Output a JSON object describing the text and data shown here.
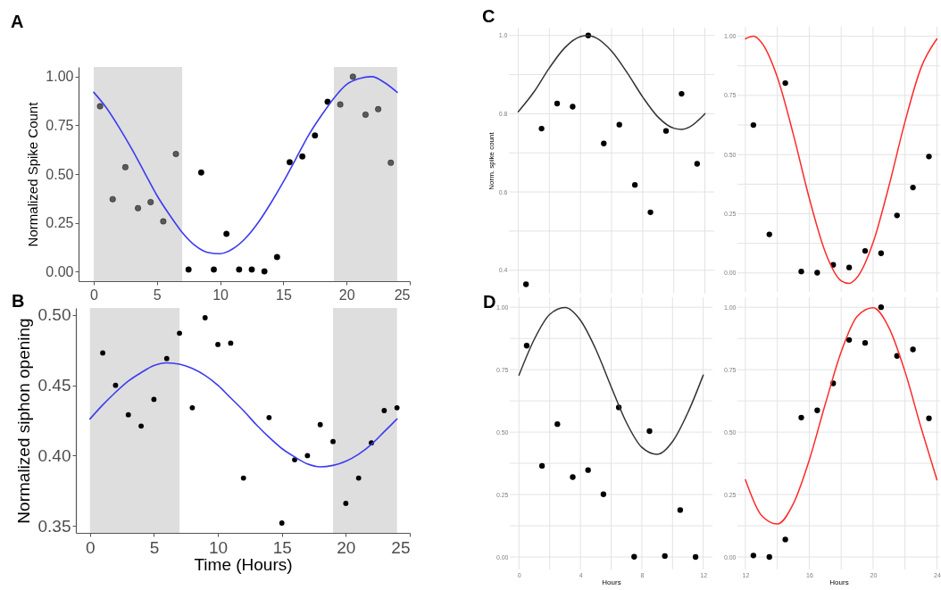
{
  "chart_data": [
    {
      "type": "scatter",
      "title": "A",
      "ylabel": "Normalized Spike Count",
      "xlim": [
        -1.2,
        25
      ],
      "ylim": [
        -0.05,
        1.05
      ],
      "xticks": [
        0,
        5,
        10,
        15,
        20,
        25
      ],
      "yticks": [
        {
          "value": 0,
          "label": "0.00"
        },
        0.25,
        {
          "value": 0.5,
          "label": "0.50"
        },
        0.75,
        {
          "value": 1,
          "label": "1.00"
        }
      ],
      "grid": false,
      "bands": [
        {
          "axis": "x",
          "from": 0,
          "to": 7,
          "color": "#dedede"
        },
        {
          "axis": "x",
          "from": 19,
          "to": 24,
          "color": "#dedede"
        }
      ],
      "series": [
        {
          "type": "scatter",
          "marker": "circle",
          "color": "#000000",
          "x": [
            0.5,
            1.5,
            2.5,
            3.5,
            4.5,
            5.5,
            6.5,
            7.5,
            8.5,
            9.5,
            10.5,
            11.5,
            12.5,
            13.5,
            14.5,
            15.5,
            16.5,
            17.5,
            18.5,
            19.5,
            20.5,
            21.5,
            22.5,
            23.5
          ],
          "values": [
            0.848,
            0.371,
            0.535,
            0.325,
            0.356,
            0.257,
            0.603,
            0.01,
            0.508,
            0.01,
            0.193,
            0.01,
            0.01,
            0.0,
            0.074,
            0.561,
            0.59,
            0.698,
            0.871,
            0.857,
            1.0,
            0.805,
            0.833,
            0.558
          ],
          "colors": [
            "#5a5a5a",
            "#5a5a5a",
            "#5a5a5a",
            "#5a5a5a",
            "#5a5a5a",
            "#5a5a5a",
            "#5a5a5a",
            "#000000",
            "#000000",
            "#000000",
            "#000000",
            "#000000",
            "#000000",
            "#000000",
            "#000000",
            "#000000",
            "#000000",
            "#000000",
            "#000000",
            "#5a5a5a",
            "#5a5a5a",
            "#5a5a5a",
            "#5a5a5a",
            "#5a5a5a"
          ]
        },
        {
          "type": "line",
          "marker": "none",
          "line_style": "solid",
          "color": "#3b3bf0",
          "x": [
            0,
            1,
            2,
            3,
            4,
            5,
            6,
            7,
            8,
            9,
            10,
            11,
            12,
            13,
            14,
            15,
            16,
            17,
            18,
            19,
            20,
            21,
            22,
            23,
            24
          ],
          "values": [
            0.92,
            0.84,
            0.74,
            0.63,
            0.51,
            0.39,
            0.29,
            0.2,
            0.134,
            0.098,
            0.091,
            0.116,
            0.17,
            0.25,
            0.35,
            0.46,
            0.58,
            0.7,
            0.8,
            0.89,
            0.96,
            0.99,
            1.0,
            0.97,
            0.92
          ]
        }
      ]
    },
    {
      "type": "scatter",
      "title": "B",
      "xlabel": "Time (Hours)",
      "ylabel": "Normalized siphon opening",
      "xlim": [
        -1.1,
        25
      ],
      "ylim": [
        0.345,
        0.505
      ],
      "xticks": [
        0,
        5,
        10,
        15,
        20,
        25
      ],
      "yticks": [
        0.35,
        {
          "value": 0.4,
          "label": "0.40"
        },
        0.45,
        {
          "value": 0.5,
          "label": "0.50"
        }
      ],
      "grid": false,
      "bands": [
        {
          "axis": "x",
          "from": 0,
          "to": 7,
          "color": "#dedede"
        },
        {
          "axis": "x",
          "from": 19,
          "to": 24,
          "color": "#dedede"
        }
      ],
      "series": [
        {
          "type": "scatter",
          "marker": "circle",
          "color": "#000000",
          "x": [
            1,
            2,
            3,
            4,
            5,
            6,
            7,
            8,
            9,
            10,
            11,
            12,
            14,
            15,
            16,
            17,
            18,
            19,
            20,
            21,
            22,
            23,
            24
          ],
          "values": [
            0.473,
            0.45,
            0.429,
            0.421,
            0.44,
            0.469,
            0.487,
            0.434,
            0.498,
            0.479,
            0.48,
            0.384,
            0.427,
            0.352,
            0.397,
            0.4,
            0.422,
            0.41,
            0.366,
            0.384,
            0.409,
            0.432,
            0.434
          ]
        },
        {
          "type": "line",
          "marker": "none",
          "line_style": "solid",
          "color": "#3b3bf0",
          "x": [
            0,
            1,
            2,
            3,
            4,
            5,
            6,
            7,
            8,
            9,
            10,
            11,
            12,
            13,
            14,
            15,
            16,
            17,
            18,
            19,
            20,
            21,
            22,
            23,
            24
          ],
          "values": [
            0.426,
            0.436,
            0.445,
            0.453,
            0.459,
            0.464,
            0.466,
            0.465,
            0.462,
            0.457,
            0.45,
            0.441,
            0.432,
            0.422,
            0.413,
            0.405,
            0.399,
            0.394,
            0.392,
            0.393,
            0.396,
            0.401,
            0.408,
            0.417,
            0.426
          ]
        }
      ]
    },
    {
      "type": "scatter",
      "title": "C",
      "ylabel": "Norm. spike count",
      "xlim": [
        -0.6,
        12.6
      ],
      "ylim": [
        0.34,
        1.02
      ],
      "xticks": [
        0,
        {
          "value": 2,
          "label": null
        },
        4,
        {
          "value": 6,
          "label": null
        },
        8,
        {
          "value": 10,
          "label": null
        },
        12
      ],
      "yticks": [
        0.4,
        {
          "value": 0.5,
          "label": null
        },
        0.6,
        {
          "value": 0.7,
          "label": null
        },
        0.8,
        {
          "value": 0.9,
          "label": null
        },
        {
          "value": 1,
          "label": "1.0"
        }
      ],
      "tick_labels": "y",
      "grid": true,
      "series": [
        {
          "type": "scatter",
          "marker": "circle",
          "color": "#000000",
          "x": [
            0.5,
            1.5,
            2.5,
            3.5,
            4.5,
            5.5,
            6.5,
            7.5,
            8.5,
            9.5,
            10.5,
            11.5
          ],
          "values": [
            0.364,
            0.762,
            0.826,
            0.818,
            1.0,
            0.724,
            0.772,
            0.618,
            0.548,
            0.756,
            0.851,
            0.672
          ]
        },
        {
          "type": "line",
          "marker": "none",
          "line_style": "solid",
          "color": "#333333",
          "x": [
            0,
            1,
            2,
            3,
            4,
            4.5,
            5,
            6,
            7,
            8,
            9,
            10,
            10.5,
            11,
            12
          ],
          "values": [
            0.805,
            0.855,
            0.917,
            0.969,
            0.997,
            1.0,
            0.994,
            0.96,
            0.905,
            0.843,
            0.791,
            0.763,
            0.76,
            0.766,
            0.8
          ]
        }
      ]
    },
    {
      "type": "scatter",
      "xlim": [
        11.5,
        24.2
      ],
      "ylim": [
        -0.08,
        1.04
      ],
      "xticks": [
        12,
        {
          "value": 14,
          "label": null
        },
        16,
        {
          "value": 18,
          "label": null
        },
        20,
        {
          "value": 22,
          "label": null
        },
        24
      ],
      "yticks": [
        {
          "value": 0,
          "label": "0.00"
        },
        {
          "value": 0.125,
          "label": null
        },
        0.25,
        {
          "value": 0.375,
          "label": null
        },
        {
          "value": 0.5,
          "label": "0.50"
        },
        {
          "value": 0.625,
          "label": null
        },
        0.75,
        {
          "value": 0.875,
          "label": null
        },
        {
          "value": 1,
          "label": "1.00"
        }
      ],
      "tick_labels": "y",
      "grid": true,
      "series": [
        {
          "type": "scatter",
          "marker": "circle",
          "color": "#000000",
          "x": [
            12.5,
            13.5,
            14.5,
            15.5,
            16.5,
            17.5,
            18.5,
            19.5,
            20.5,
            21.5,
            22.5,
            23.5
          ],
          "values": [
            0.625,
            0.163,
            0.802,
            0.006,
            0.001,
            0.034,
            0.023,
            0.093,
            0.083,
            0.243,
            0.361,
            0.492
          ]
        },
        {
          "type": "line",
          "marker": "none",
          "line_style": "solid",
          "color": "#ff2a2a",
          "x": [
            12,
            12.5,
            13,
            14,
            15,
            16,
            17,
            18,
            18.5,
            19,
            20,
            21,
            22,
            23,
            24
          ],
          "values": [
            0.989,
            1.0,
            0.974,
            0.827,
            0.586,
            0.316,
            0.089,
            -0.033,
            -0.044,
            -0.019,
            0.128,
            0.369,
            0.639,
            0.866,
            0.989
          ]
        }
      ]
    },
    {
      "type": "scatter",
      "title": "D",
      "xlabel": "Hours",
      "xlim": [
        -0.6,
        12.6
      ],
      "ylim": [
        -0.05,
        1.04
      ],
      "xticks": [
        0,
        {
          "value": 2,
          "label": null
        },
        4,
        {
          "value": 6,
          "label": null
        },
        8,
        {
          "value": 10,
          "label": null
        },
        12
      ],
      "yticks": [
        {
          "value": 0,
          "label": "0.00"
        },
        {
          "value": 0.125,
          "label": null
        },
        0.25,
        {
          "value": 0.375,
          "label": null
        },
        {
          "value": 0.5,
          "label": "0.50"
        },
        {
          "value": 0.625,
          "label": null
        },
        0.75,
        {
          "value": 0.875,
          "label": null
        },
        {
          "value": 1,
          "label": "1.00"
        }
      ],
      "grid": true,
      "series": [
        {
          "type": "scatter",
          "marker": "circle",
          "color": "#000000",
          "x": [
            0.5,
            1.5,
            2.5,
            3.5,
            4.5,
            5.5,
            6.5,
            7.5,
            8.5,
            9.5,
            10.5,
            11.5
          ],
          "values": [
            0.846,
            0.365,
            0.532,
            0.32,
            0.348,
            0.251,
            0.599,
            0.001,
            0.504,
            0.004,
            0.188,
            0.0
          ]
        },
        {
          "type": "line",
          "marker": "none",
          "line_style": "solid",
          "color": "#333333",
          "x": [
            0,
            1,
            2,
            3,
            4,
            5,
            6,
            7,
            8,
            9,
            10,
            11,
            12
          ],
          "values": [
            0.728,
            0.872,
            0.971,
            0.999,
            0.948,
            0.832,
            0.682,
            0.538,
            0.439,
            0.411,
            0.462,
            0.578,
            0.728
          ]
        }
      ]
    },
    {
      "type": "scatter",
      "xlabel": "Hours",
      "xlim": [
        11.5,
        24.2
      ],
      "ylim": [
        -0.05,
        1.04
      ],
      "xticks": [
        12,
        {
          "value": 14,
          "label": null
        },
        16,
        {
          "value": 18,
          "label": null
        },
        20,
        {
          "value": 22,
          "label": null
        },
        24
      ],
      "yticks": [
        {
          "value": 0,
          "label": "0.00"
        },
        {
          "value": 0.125,
          "label": null
        },
        0.25,
        {
          "value": 0.375,
          "label": null
        },
        {
          "value": 0.5,
          "label": "0.50"
        },
        {
          "value": 0.625,
          "label": null
        },
        0.75,
        {
          "value": 0.875,
          "label": null
        },
        {
          "value": 1,
          "label": "1.00"
        }
      ],
      "grid": true,
      "series": [
        {
          "type": "scatter",
          "marker": "circle",
          "color": "#000000",
          "x": [
            12.5,
            13.5,
            14.5,
            15.5,
            16.5,
            17.5,
            18.5,
            19.5,
            20.5,
            21.5,
            22.5,
            23.5
          ],
          "values": [
            0.006,
            0.0,
            0.07,
            0.558,
            0.587,
            0.695,
            0.869,
            0.857,
            1.0,
            0.805,
            0.831,
            0.555
          ]
        },
        {
          "type": "line",
          "marker": "none",
          "line_style": "solid",
          "color": "#ff2a2a",
          "x": [
            12,
            13,
            14,
            15,
            16,
            17,
            18,
            19,
            20,
            21,
            22,
            23,
            24
          ],
          "values": [
            0.309,
            0.167,
            0.132,
            0.213,
            0.388,
            0.611,
            0.821,
            0.963,
            0.998,
            0.917,
            0.742,
            0.519,
            0.309
          ]
        }
      ]
    }
  ]
}
